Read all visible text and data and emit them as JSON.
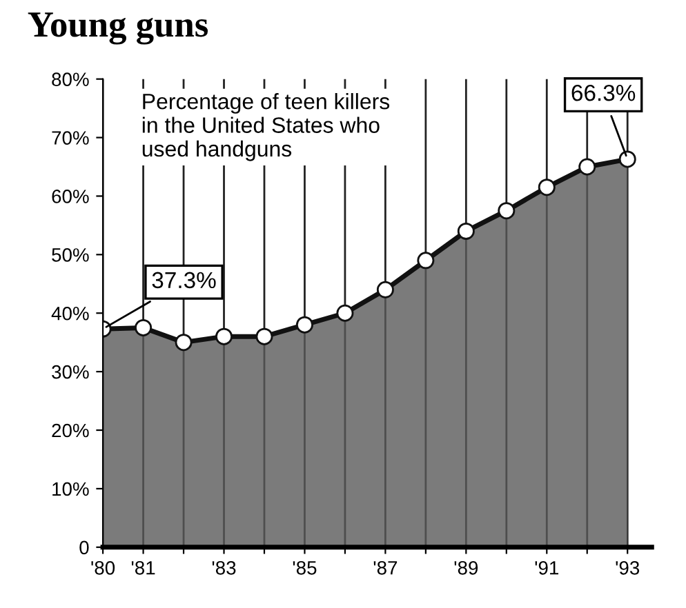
{
  "chart_data": {
    "type": "area",
    "title": "Young guns",
    "subtitle": "Percentage of teen killers\nin the United States who\nused handguns",
    "x": [
      1980,
      1981,
      1982,
      1983,
      1984,
      1985,
      1986,
      1987,
      1988,
      1989,
      1990,
      1991,
      1992,
      1993
    ],
    "series": [
      {
        "color": "#5a5a5a",
        "values": [
          37.3,
          37.5,
          35,
          36,
          36,
          38,
          40,
          44,
          49,
          54,
          57.5,
          61.5,
          65,
          66.3
        ],
        "value_labels": [
          "37.3%",
          null,
          null,
          null,
          null,
          null,
          null,
          null,
          null,
          null,
          null,
          null,
          null,
          "66.3%"
        ]
      }
    ],
    "marker": "circle",
    "grid": "x",
    "xlim": [
      1980,
      1993.6
    ],
    "xticks": [
      {
        "value": 1980,
        "label": "'80"
      },
      {
        "value": 1981,
        "label": "'81"
      },
      {
        "value": 1982,
        "label": null
      },
      {
        "value": 1983,
        "label": "'83"
      },
      {
        "value": 1984,
        "label": null
      },
      {
        "value": 1985,
        "label": "'85"
      },
      {
        "value": 1986,
        "label": null
      },
      {
        "value": 1987,
        "label": "'87"
      },
      {
        "value": 1988,
        "label": null
      },
      {
        "value": 1989,
        "label": "'89"
      },
      {
        "value": 1990,
        "label": null
      },
      {
        "value": 1991,
        "label": "'91"
      },
      {
        "value": 1992,
        "label": null
      },
      {
        "value": 1993,
        "label": "'93"
      }
    ],
    "ylim": [
      0,
      80
    ],
    "yticks": [
      0,
      {
        "value": 10,
        "label": "10%"
      },
      {
        "value": 20,
        "label": "20%"
      },
      {
        "value": 30,
        "label": "30%"
      },
      {
        "value": 40,
        "label": "40%"
      },
      {
        "value": 50,
        "label": "50%"
      },
      {
        "value": 60,
        "label": "60%"
      },
      {
        "value": 70,
        "label": "70%"
      },
      {
        "value": 80,
        "label": "80%"
      }
    ]
  }
}
